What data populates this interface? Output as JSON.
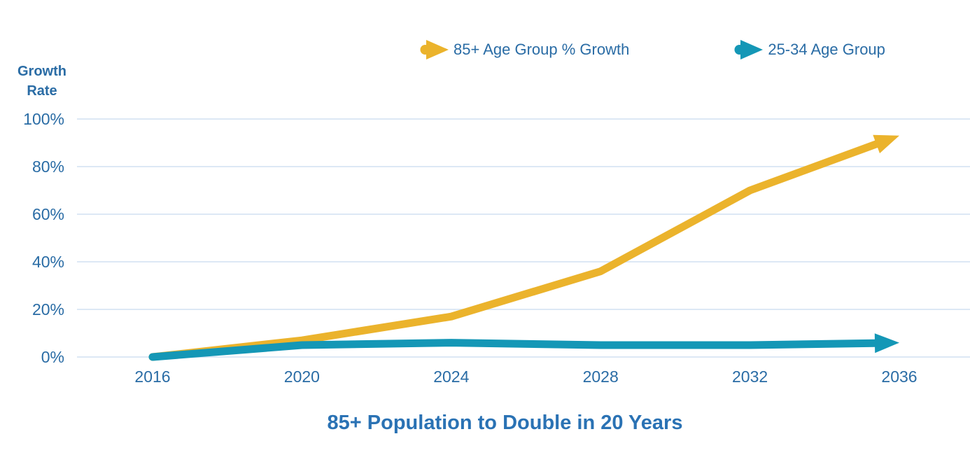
{
  "y_axis_title": {
    "line1": "Growth",
    "line2": "Rate"
  },
  "colors": {
    "axis_text": "#2a6ca5",
    "title_text": "#2a72b4",
    "gridline": "#dce8f5",
    "series_85plus": "#ebb32c",
    "series_25to34": "#1497b6"
  },
  "chart_data": {
    "type": "line",
    "title": "85+ Population to Double in 20 Years",
    "ylabel": "Growth Rate",
    "xlabel": "",
    "x": [
      2016,
      2020,
      2024,
      2028,
      2032,
      2036
    ],
    "xtick_labels": [
      "2016",
      "2020",
      "2024",
      "2028",
      "2032",
      "2036"
    ],
    "series": [
      {
        "name": "85+ Age Group % Growth",
        "color": "#ebb32c",
        "values": [
          0,
          7,
          17,
          36,
          70,
          93
        ],
        "end_marker": "arrow"
      },
      {
        "name": "25-34 Age Group",
        "color": "#1497b6",
        "values": [
          0,
          5,
          6,
          5,
          5,
          6
        ],
        "end_marker": "arrow"
      }
    ],
    "ylim": [
      0,
      100
    ],
    "ytick_values": [
      0,
      20,
      40,
      60,
      80,
      100
    ],
    "ytick_labels": [
      "0%",
      "20%",
      "40%",
      "60%",
      "80%",
      "100%"
    ],
    "grid": true,
    "legend_position": "top"
  }
}
